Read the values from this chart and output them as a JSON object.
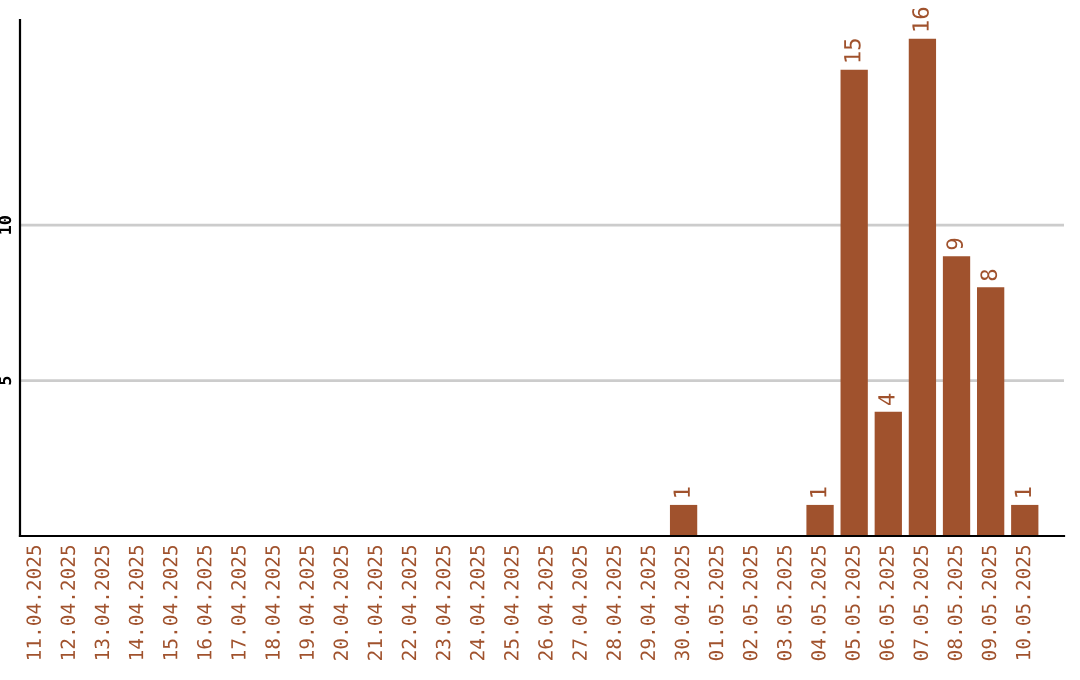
{
  "chart_data": {
    "type": "bar",
    "categories": [
      "11.04.2025",
      "12.04.2025",
      "13.04.2025",
      "14.04.2025",
      "15.04.2025",
      "16.04.2025",
      "17.04.2025",
      "18.04.2025",
      "19.04.2025",
      "20.04.2025",
      "21.04.2025",
      "22.04.2025",
      "23.04.2025",
      "24.04.2025",
      "25.04.2025",
      "26.04.2025",
      "27.04.2025",
      "28.04.2025",
      "29.04.2025",
      "30.04.2025",
      "01.05.2025",
      "02.05.2025",
      "03.05.2025",
      "04.05.2025",
      "05.05.2025",
      "06.05.2025",
      "07.05.2025",
      "08.05.2025",
      "09.05.2025",
      "10.05.2025"
    ],
    "values": [
      0,
      0,
      0,
      0,
      0,
      0,
      0,
      0,
      0,
      0,
      0,
      0,
      0,
      0,
      0,
      0,
      0,
      0,
      0,
      1,
      0,
      0,
      0,
      1,
      15,
      4,
      16,
      9,
      8,
      1
    ],
    "value_labels": [
      null,
      null,
      null,
      null,
      null,
      null,
      null,
      null,
      null,
      null,
      null,
      null,
      null,
      null,
      null,
      null,
      null,
      null,
      null,
      "1",
      null,
      null,
      null,
      "1",
      "15",
      "4",
      "16",
      "9",
      "8",
      "1"
    ],
    "color": "#a0522d",
    "ylim": [
      0,
      16.6
    ],
    "yticks": [
      5,
      10
    ],
    "grid": "y",
    "legend": false
  }
}
